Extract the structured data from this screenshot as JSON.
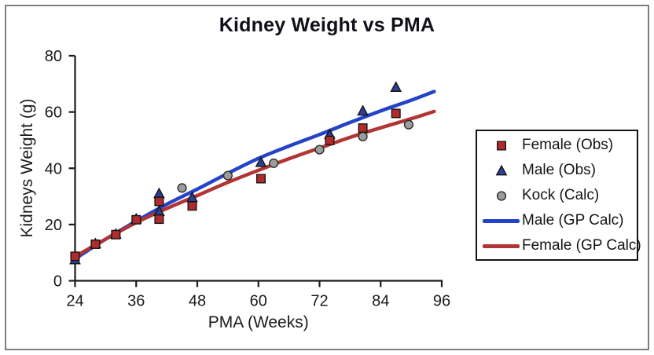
{
  "window": {
    "border_color": "#7e7e7e",
    "background": "#ffffff"
  },
  "chart_data": {
    "type": "scatter",
    "title": "Kidney Weight vs PMA",
    "xlabel": "PMA (Weeks)",
    "ylabel": "Kidneys Weight (g)",
    "xlim": [
      24,
      96
    ],
    "ylim": [
      0,
      80
    ],
    "xticks": [
      24,
      36,
      48,
      60,
      72,
      84,
      96
    ],
    "yticks": [
      0,
      20,
      40,
      60,
      80
    ],
    "grid": false,
    "legend_position": "right",
    "axis_color": "#1b1b1b",
    "tick_label_size": 20,
    "axis_title_size": 21,
    "series": [
      {
        "name": "Female (Obs)",
        "kind": "scatter",
        "marker": "square",
        "fill": "#b02c2c",
        "edge": "#151515",
        "points": [
          [
            24,
            8.7
          ],
          [
            28,
            13
          ],
          [
            32,
            16.4
          ],
          [
            36,
            21.7
          ],
          [
            40.5,
            28.2
          ],
          [
            40.5,
            21.9
          ],
          [
            47,
            26.6
          ],
          [
            60.5,
            36.3
          ],
          [
            74,
            49.9
          ],
          [
            80.5,
            54.3
          ],
          [
            87,
            59.5
          ]
        ]
      },
      {
        "name": "Male (Obs)",
        "kind": "scatter",
        "marker": "triangle",
        "fill": "#2b3f94",
        "edge": "#151515",
        "points": [
          [
            24,
            7.5
          ],
          [
            28,
            13.2
          ],
          [
            32,
            16.6
          ],
          [
            36,
            22
          ],
          [
            40.5,
            31
          ],
          [
            40.5,
            24.7
          ],
          [
            47,
            29.6
          ],
          [
            60.5,
            42.1
          ],
          [
            74,
            52
          ],
          [
            80.5,
            60.4
          ],
          [
            87,
            68.8
          ]
        ]
      },
      {
        "name": "Kock (Calc)",
        "kind": "scatter",
        "marker": "circle",
        "fill": "#9c9c9c",
        "edge": "#2a2a2a",
        "points": [
          [
            45,
            33
          ],
          [
            54,
            37.4
          ],
          [
            63,
            41.8
          ],
          [
            72,
            46.6
          ],
          [
            80.5,
            51.3
          ],
          [
            89.5,
            55.5
          ]
        ]
      },
      {
        "name": "Male (GP Calc)",
        "kind": "line",
        "color": "#2443c7",
        "width": 4.5,
        "points": [
          [
            24,
            7.8
          ],
          [
            30,
            14.8
          ],
          [
            36,
            21.2
          ],
          [
            42,
            27.2
          ],
          [
            48,
            32.6
          ],
          [
            54,
            38.2
          ],
          [
            60,
            43.5
          ],
          [
            66,
            47.9
          ],
          [
            72,
            52
          ],
          [
            78,
            56.3
          ],
          [
            84,
            60.4
          ],
          [
            90,
            64.2
          ],
          [
            94.5,
            67.3
          ]
        ]
      },
      {
        "name": "Female (GP Calc)",
        "kind": "line",
        "color": "#b23535",
        "width": 4.5,
        "points": [
          [
            24,
            8.6
          ],
          [
            30,
            14.8
          ],
          [
            36,
            20.7
          ],
          [
            42,
            25.7
          ],
          [
            48,
            30.3
          ],
          [
            54,
            35
          ],
          [
            60,
            39.3
          ],
          [
            66,
            43.4
          ],
          [
            72,
            47.2
          ],
          [
            78,
            51
          ],
          [
            84,
            54.4
          ],
          [
            90,
            57.6
          ],
          [
            94.5,
            60.2
          ]
        ]
      }
    ]
  }
}
